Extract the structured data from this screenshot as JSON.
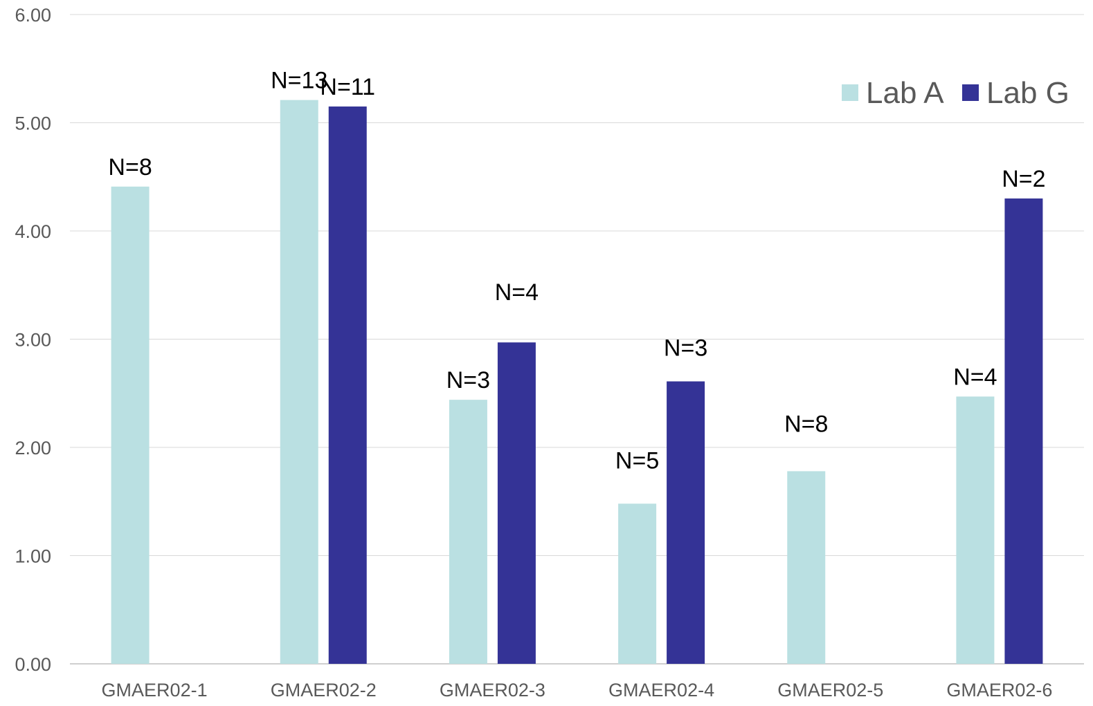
{
  "chart_data": {
    "type": "bar",
    "title": "",
    "xlabel": "",
    "ylabel": "",
    "ylim": [
      0,
      6
    ],
    "y_ticks": [
      "0.00",
      "1.00",
      "2.00",
      "3.00",
      "4.00",
      "5.00",
      "6.00"
    ],
    "grid": true,
    "legend_position": "top-right",
    "categories": [
      "GMAER02-1",
      "GMAER02-2",
      "GMAER02-3",
      "GMAER02-4",
      "GMAER02-5",
      "GMAER02-6"
    ],
    "series": [
      {
        "name": "Lab A",
        "color": "#BAE0E2",
        "values": [
          4.41,
          5.21,
          2.44,
          1.48,
          1.78,
          2.47
        ],
        "labels": [
          "N=8",
          "N=13",
          "N=3",
          "N=5",
          "N=8",
          "N=4"
        ]
      },
      {
        "name": "Lab G",
        "color": "#343396",
        "values": [
          null,
          5.15,
          2.97,
          2.61,
          null,
          4.3
        ],
        "labels": [
          "",
          "N=11",
          "N=4",
          "N=3",
          "",
          "N=2"
        ]
      }
    ]
  }
}
